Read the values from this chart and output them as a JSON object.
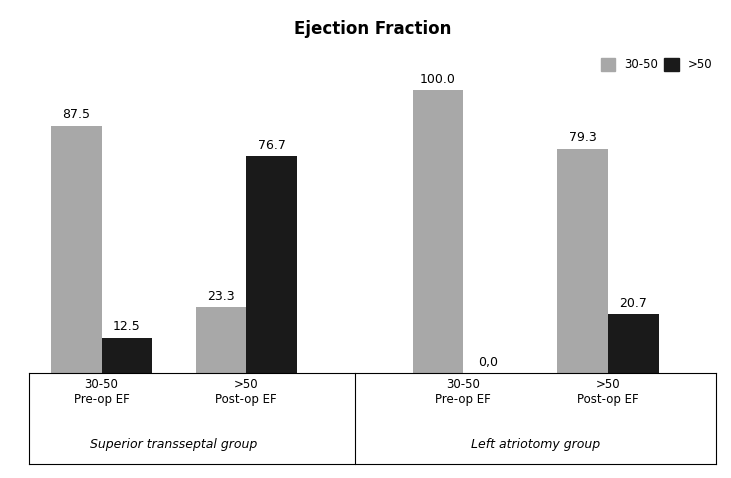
{
  "title": "Ejection Fraction",
  "groups": [
    {
      "label": "30-50\nPre-op EF",
      "values": [
        87.5,
        12.5
      ]
    },
    {
      "label": ">50\nPost-op EF",
      "values": [
        23.3,
        76.7
      ]
    },
    {
      "label": "30-50\nPre-op EF",
      "values": [
        100.0,
        0.0
      ]
    },
    {
      "label": ">50\nPost-op EF",
      "values": [
        79.3,
        20.7
      ]
    }
  ],
  "legend_labels": [
    "30-50",
    ">50"
  ],
  "legend_colors": [
    "#a8a8a8",
    "#1a1a1a"
  ],
  "ylim": [
    0,
    115
  ],
  "bar_width": 0.35,
  "group_labels": [
    "Superior transseptal group",
    "Left atriotomy group"
  ],
  "annotation_fontsize": 9,
  "title_fontsize": 12,
  "axis_label_fontsize": 8.5,
  "group_label_fontsize": 9,
  "background_color": "#ffffff"
}
